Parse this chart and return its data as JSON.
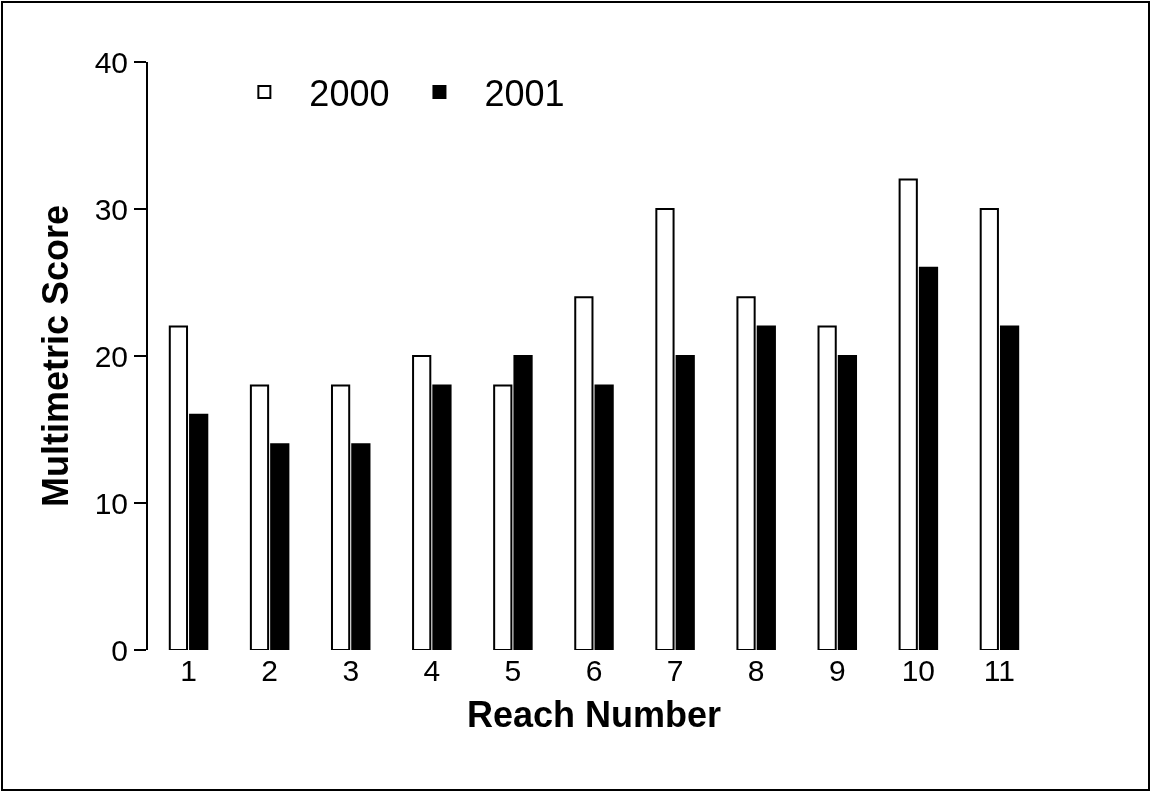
{
  "chart_data": {
    "type": "bar",
    "xlabel": "Reach Number",
    "ylabel": "Multimetric Score",
    "categories": [
      "1",
      "2",
      "3",
      "4",
      "5",
      "6",
      "7",
      "8",
      "9",
      "10",
      "11"
    ],
    "series": [
      {
        "name": "2000",
        "color": "#ffffff",
        "values": [
          22,
          18,
          18,
          20,
          18,
          24,
          30,
          24,
          22,
          32,
          30
        ]
      },
      {
        "name": "2001",
        "color": "#000000",
        "values": [
          16,
          14,
          14,
          18,
          20,
          18,
          20,
          22,
          20,
          26,
          22
        ]
      }
    ],
    "ylim": [
      0,
      40
    ],
    "yticks": [
      0,
      10,
      20,
      30,
      40
    ],
    "legend": "top left"
  }
}
